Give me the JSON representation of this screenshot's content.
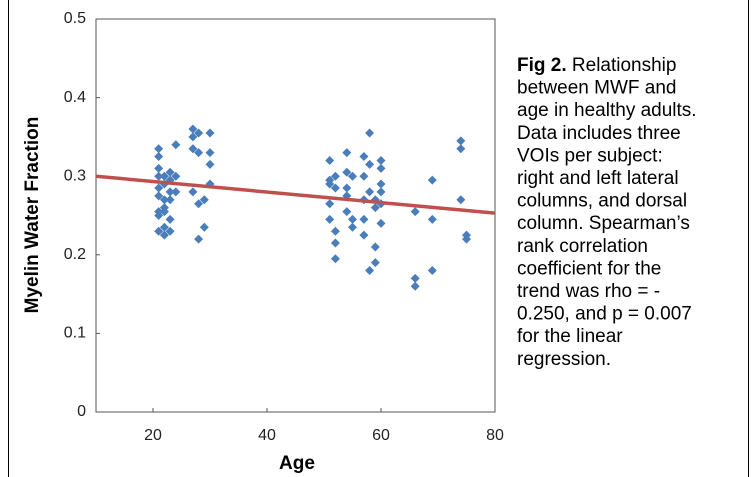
{
  "chart_data": {
    "type": "scatter",
    "xlabel": "Age",
    "ylabel": "Myelin Water Fraction",
    "xlim": [
      10,
      80
    ],
    "ylim": [
      0,
      0.5
    ],
    "xticks": [
      20,
      40,
      60,
      80
    ],
    "yticks": [
      0,
      0.1,
      0.2,
      0.3,
      0.4,
      0.5
    ],
    "series": [
      {
        "type": "scatter",
        "color": "#4a7ebb",
        "x": [
          21,
          21,
          21,
          21,
          21,
          21,
          21,
          21,
          21,
          22,
          22,
          22,
          22,
          22,
          22,
          22,
          23,
          23,
          23,
          23,
          23,
          23,
          24,
          24,
          24,
          27,
          27,
          27,
          27,
          28,
          28,
          28,
          28,
          29,
          29,
          30,
          30,
          30,
          30,
          51,
          51,
          51,
          51,
          51,
          52,
          52,
          52,
          52,
          52,
          54,
          54,
          54,
          54,
          54,
          55,
          55,
          55,
          57,
          57,
          57,
          57,
          57,
          58,
          58,
          58,
          58,
          59,
          59,
          59,
          59,
          60,
          60,
          60,
          60,
          60,
          60,
          66,
          66,
          66,
          69,
          69,
          69,
          74,
          74,
          74,
          75,
          75
        ],
        "values": [
          0.335,
          0.325,
          0.31,
          0.3,
          0.285,
          0.275,
          0.255,
          0.25,
          0.23,
          0.3,
          0.29,
          0.27,
          0.255,
          0.235,
          0.225,
          0.26,
          0.305,
          0.295,
          0.28,
          0.27,
          0.245,
          0.23,
          0.34,
          0.3,
          0.28,
          0.36,
          0.35,
          0.335,
          0.28,
          0.355,
          0.33,
          0.265,
          0.22,
          0.27,
          0.235,
          0.355,
          0.33,
          0.315,
          0.29,
          0.32,
          0.295,
          0.29,
          0.265,
          0.245,
          0.3,
          0.285,
          0.23,
          0.215,
          0.195,
          0.33,
          0.305,
          0.285,
          0.275,
          0.255,
          0.3,
          0.245,
          0.235,
          0.325,
          0.3,
          0.27,
          0.245,
          0.225,
          0.355,
          0.315,
          0.28,
          0.18,
          0.27,
          0.26,
          0.21,
          0.19,
          0.32,
          0.31,
          0.29,
          0.28,
          0.265,
          0.24,
          0.255,
          0.17,
          0.16,
          0.295,
          0.245,
          0.18,
          0.345,
          0.335,
          0.27,
          0.225,
          0.22
        ]
      },
      {
        "type": "line",
        "color": "#c0504d",
        "x": [
          10,
          80
        ],
        "values": [
          0.3,
          0.253
        ]
      }
    ]
  },
  "caption": {
    "label": "Fig 2.",
    "lines": [
      "Relationship",
      "between MWF and",
      "age in healthy adults.",
      "Data includes three",
      "VOIs per subject:",
      "right and left lateral",
      "columns, and dorsal",
      "column.  Spearman’s",
      "rank correlation",
      "coefficient for the",
      "trend was rho = -",
      "0.250, and p = 0.007",
      "for the linear",
      "regression."
    ]
  }
}
